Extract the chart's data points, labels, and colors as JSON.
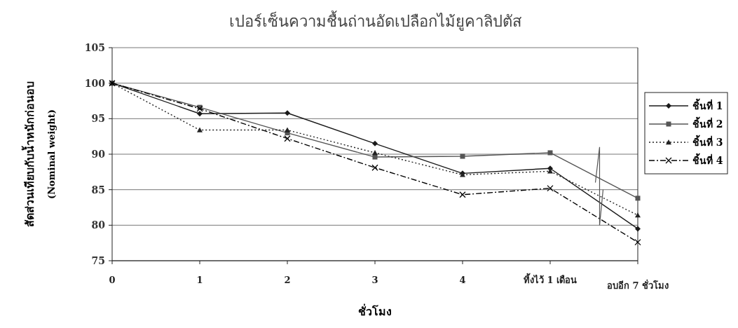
{
  "chart_data": {
    "type": "line",
    "title": "เปอร์เซ็นความชื้นถ่านอัดเปลือกไม้ยูคาลิปตัส",
    "xlabel": "ชั่วโมง",
    "ylabel": "สัดส่วนเทียบกับน้ำหนักก่อนอบ\n(Nominal weight)",
    "categories": [
      "0",
      "1",
      "2",
      "3",
      "4",
      "ทิ้งไว้ 1 เดือน",
      "อบอีก 7 ชั่วโมง"
    ],
    "series": [
      {
        "name": "ชิ้นที่ 1",
        "color": "#1a1a1a",
        "marker": "diamond",
        "line_style": "solid",
        "values": [
          100,
          95.7,
          95.8,
          91.5,
          87.3,
          88,
          79.5
        ]
      },
      {
        "name": "ชิ้นที่ 2",
        "color": "#555555",
        "marker": "square",
        "line_style": "solid",
        "values": [
          100,
          96.6,
          93,
          89.6,
          89.7,
          90.2,
          83.8
        ]
      },
      {
        "name": "ชิ้นที่ 3",
        "color": "#222222",
        "marker": "triangle",
        "line_style": "dotted",
        "values": [
          100,
          93.4,
          93.4,
          90.2,
          87.1,
          87.6,
          81.4
        ]
      },
      {
        "name": "ชิ้นที่ 4",
        "color": "#000000",
        "marker": "cross",
        "line_style": "dashed",
        "values": [
          100,
          96.4,
          92.2,
          88.1,
          84.3,
          85.2,
          77.6
        ]
      }
    ],
    "ylim": [
      75,
      105
    ],
    "yticks": [
      75,
      80,
      85,
      90,
      95,
      100,
      105
    ],
    "grid": "y",
    "legend": "right"
  }
}
